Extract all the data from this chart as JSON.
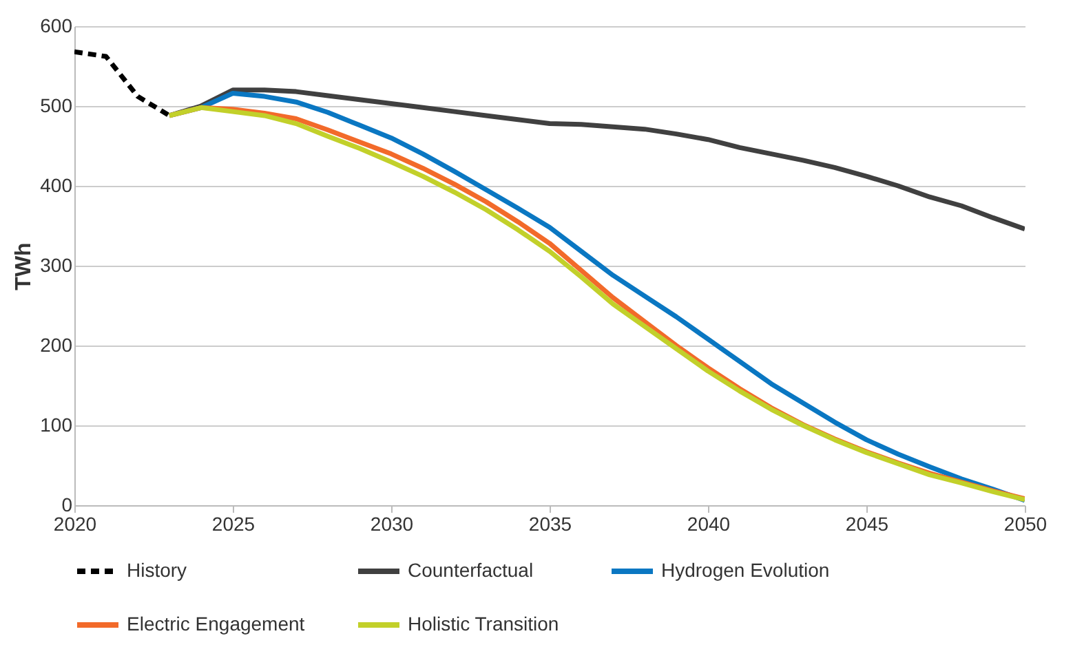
{
  "chart_data": {
    "type": "line",
    "ylabel": "TWh",
    "xlim": [
      2020,
      2050
    ],
    "xticks": [
      2020,
      2025,
      2030,
      2035,
      2040,
      2045,
      2050
    ],
    "ylim": [
      0,
      600
    ],
    "yticks": [
      0,
      100,
      200,
      300,
      400,
      500,
      600
    ],
    "grid": "y",
    "legend": "bottom",
    "series": [
      {
        "name": "History",
        "color": "#000000",
        "line_style": "dashed",
        "x": [
          2020,
          2021,
          2022,
          2023
        ],
        "values": [
          568,
          562,
          512,
          488
        ]
      },
      {
        "name": "Counterfactual",
        "color": "#404040",
        "line_style": "solid",
        "x": [
          2023,
          2024,
          2025,
          2026,
          2027,
          2028,
          2029,
          2030,
          2031,
          2032,
          2033,
          2034,
          2035,
          2036,
          2037,
          2038,
          2039,
          2040,
          2041,
          2042,
          2043,
          2044,
          2045,
          2046,
          2047,
          2048,
          2049,
          2050
        ],
        "values": [
          488,
          500,
          520,
          520,
          518,
          513,
          508,
          503,
          498,
          493,
          488,
          483,
          478,
          477,
          474,
          471,
          465,
          458,
          448,
          440,
          432,
          423,
          412,
          400,
          386,
          375,
          360,
          346
        ]
      },
      {
        "name": "Hydrogen Evolution",
        "color": "#0a77c2",
        "line_style": "solid",
        "x": [
          2023,
          2024,
          2025,
          2026,
          2027,
          2028,
          2029,
          2030,
          2031,
          2032,
          2033,
          2034,
          2035,
          2036,
          2037,
          2038,
          2039,
          2040,
          2041,
          2042,
          2043,
          2044,
          2045,
          2046,
          2047,
          2048,
          2049,
          2050
        ],
        "values": [
          488,
          498,
          516,
          512,
          505,
          492,
          476,
          460,
          440,
          418,
          395,
          372,
          348,
          318,
          288,
          262,
          236,
          208,
          180,
          152,
          128,
          104,
          82,
          64,
          48,
          33,
          20,
          6
        ]
      },
      {
        "name": "Electric Engagement",
        "color": "#f26a2a",
        "line_style": "solid",
        "x": [
          2023,
          2024,
          2025,
          2026,
          2027,
          2028,
          2029,
          2030,
          2031,
          2032,
          2033,
          2034,
          2035,
          2036,
          2037,
          2038,
          2039,
          2040,
          2041,
          2042,
          2043,
          2044,
          2045,
          2046,
          2047,
          2048,
          2049,
          2050
        ],
        "values": [
          488,
          498,
          496,
          491,
          484,
          470,
          455,
          440,
          422,
          402,
          380,
          355,
          328,
          294,
          260,
          230,
          200,
          172,
          146,
          122,
          101,
          83,
          67,
          53,
          40,
          29,
          18,
          8
        ]
      },
      {
        "name": "Holistic Transition",
        "color": "#c2d02a",
        "line_style": "solid",
        "x": [
          2023,
          2024,
          2025,
          2026,
          2027,
          2028,
          2029,
          2030,
          2031,
          2032,
          2033,
          2034,
          2035,
          2036,
          2037,
          2038,
          2039,
          2040,
          2041,
          2042,
          2043,
          2044,
          2045,
          2046,
          2047,
          2048,
          2049,
          2050
        ],
        "values": [
          488,
          498,
          493,
          488,
          478,
          462,
          447,
          430,
          412,
          392,
          370,
          345,
          318,
          286,
          252,
          224,
          196,
          168,
          143,
          120,
          100,
          82,
          66,
          52,
          38,
          28,
          17,
          7
        ]
      }
    ]
  }
}
